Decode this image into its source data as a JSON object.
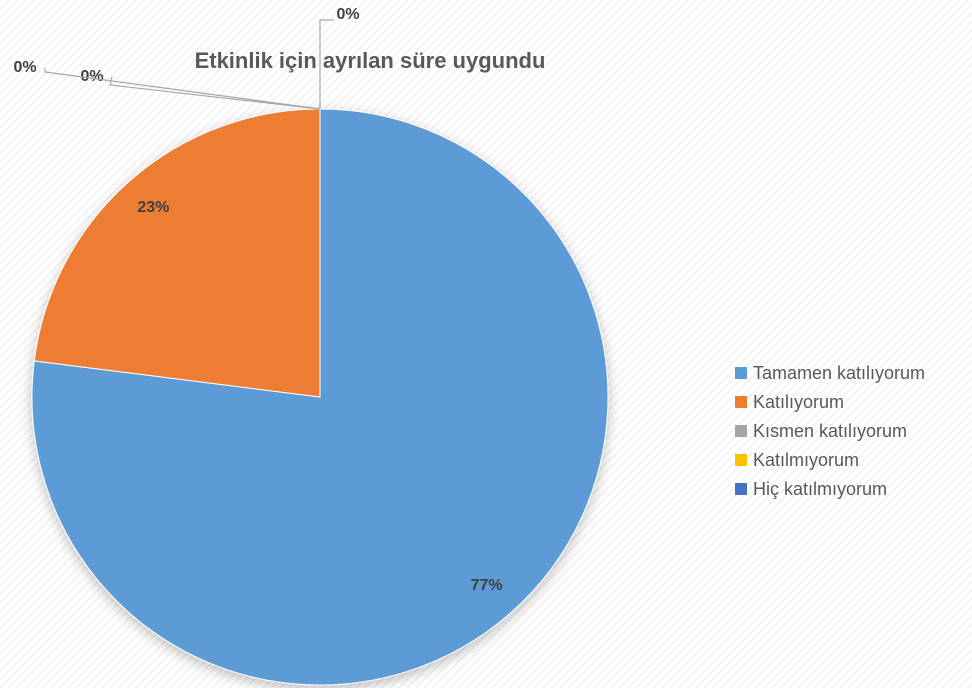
{
  "chart_data": {
    "type": "pie",
    "title": "Etkinlik için ayrılan süre uygundu",
    "categories": [
      "Tamamen katılıyorum",
      "Katılıyorum",
      "Kısmen katılıyorum",
      "Katılmıyorum",
      "Hiç katılmıyorum"
    ],
    "values": [
      77,
      23,
      0,
      0,
      0
    ],
    "value_labels": [
      "77%",
      "23%",
      "0%",
      "0%",
      "0%"
    ],
    "colors": [
      "#5b9bd5",
      "#ed7d31",
      "#a5a5a5",
      "#ffc000",
      "#4472c4"
    ],
    "legend": "right"
  }
}
